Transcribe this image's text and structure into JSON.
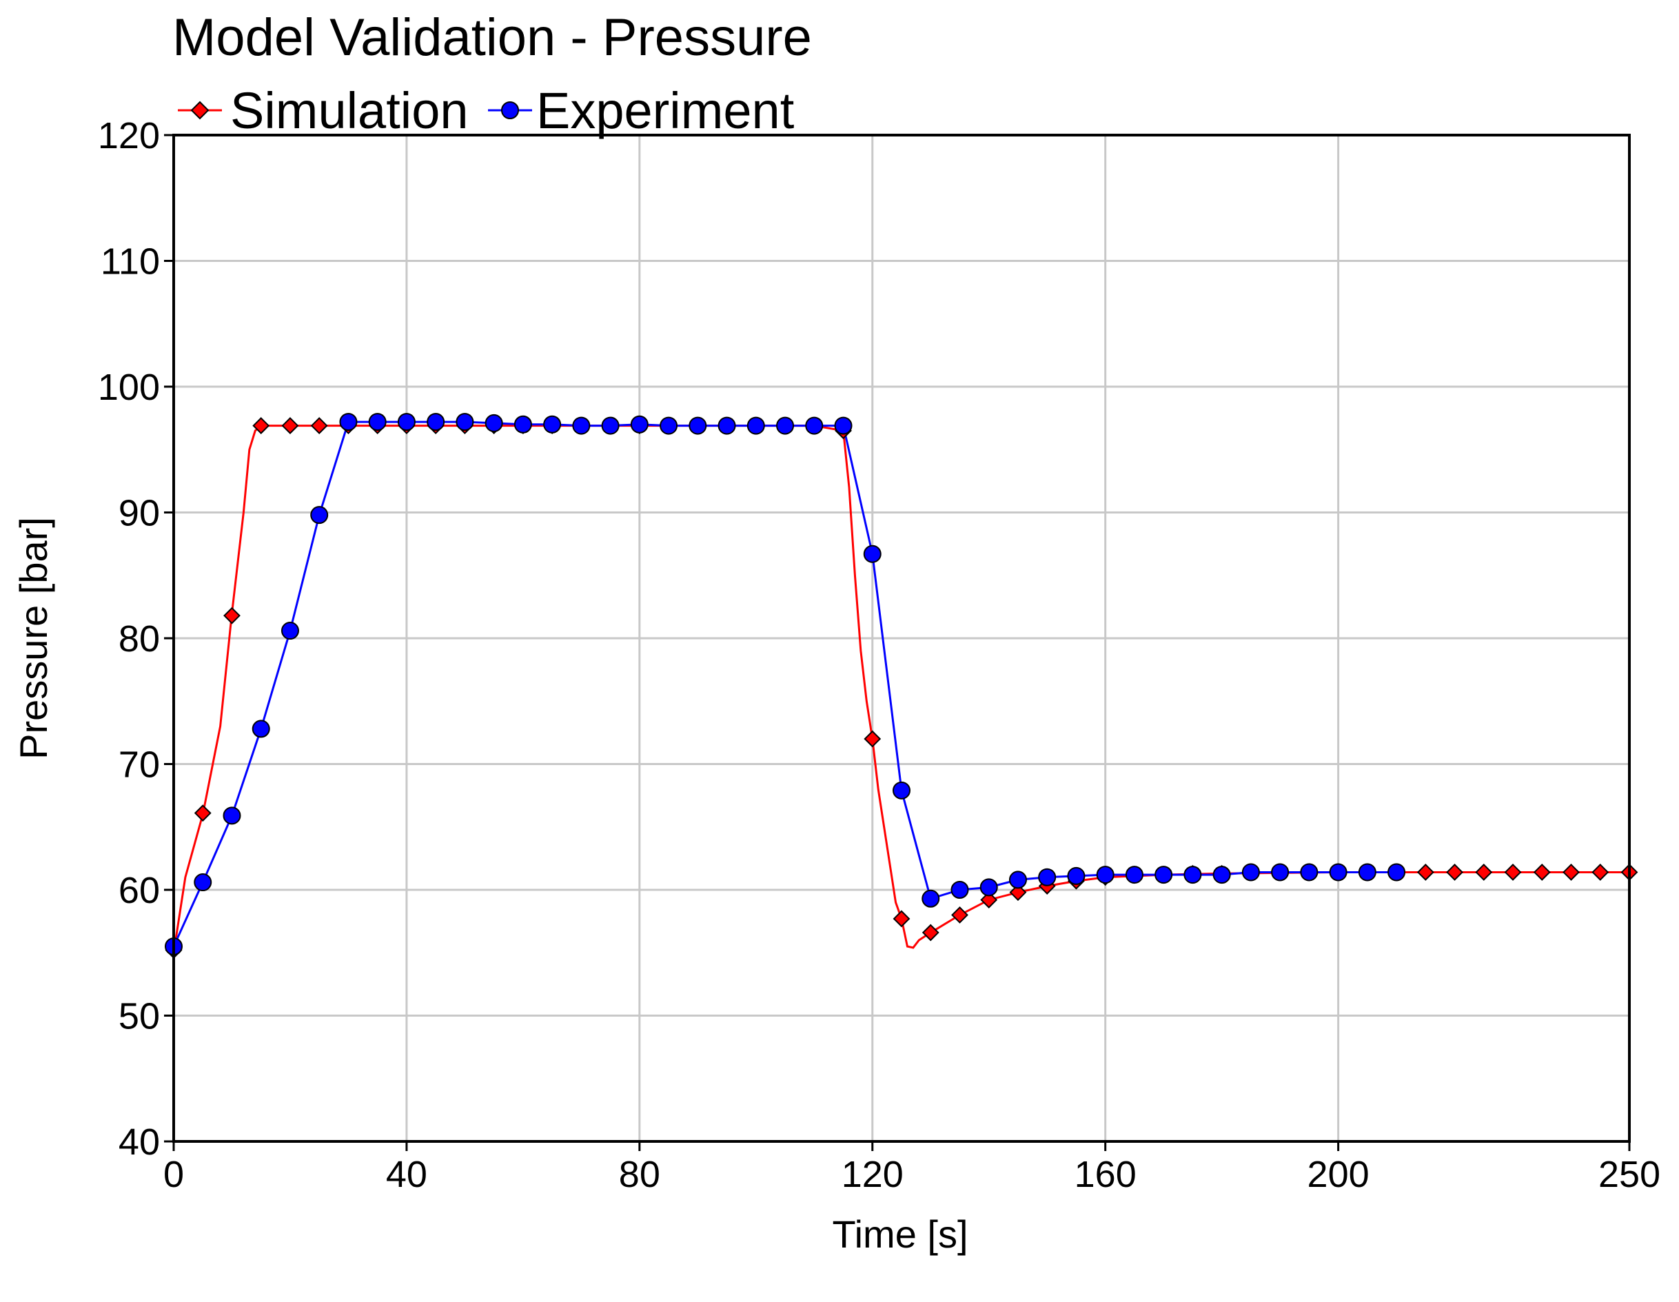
{
  "chart_data": {
    "type": "line",
    "title": "Model Validation - Pressure",
    "xlabel": "Time [s]",
    "ylabel": "Pressure [bar]",
    "xlim": [
      0,
      250
    ],
    "ylim": [
      40,
      120
    ],
    "grid": true,
    "legend_position": "top-left",
    "x_ticks": [
      0,
      40,
      80,
      120,
      160,
      200,
      250
    ],
    "x_tick_labels": [
      "0",
      "40",
      "80",
      "120",
      "160",
      "200",
      "250"
    ],
    "y_ticks": [
      40,
      50,
      60,
      70,
      80,
      90,
      100,
      110,
      120
    ],
    "y_tick_labels": [
      "40",
      "50",
      "60",
      "70",
      "80",
      "90",
      "100",
      "110",
      "120"
    ],
    "series": [
      {
        "name": "Simulation",
        "color": "#ff0000",
        "marker": "diamond",
        "line_x": [
          0,
          2,
          5,
          8,
          10,
          12,
          13,
          14,
          15,
          30,
          60,
          110,
          115,
          116,
          117,
          118,
          119,
          120,
          121,
          122,
          123,
          124,
          125,
          126,
          127,
          128,
          130,
          135,
          140,
          145,
          150,
          155,
          160,
          170,
          180,
          200,
          250
        ],
        "line_y": [
          55,
          61,
          66,
          73,
          82,
          90,
          95,
          96.5,
          96.9,
          96.9,
          96.9,
          96.9,
          96.5,
          92,
          85,
          79,
          75,
          72,
          68,
          65,
          62,
          59,
          57.7,
          55.5,
          55.4,
          56,
          56.6,
          58,
          59.2,
          59.8,
          60.3,
          60.7,
          61,
          61.2,
          61.3,
          61.4,
          61.4
        ],
        "markers_x": [
          0,
          5,
          10,
          15,
          20,
          25,
          30,
          35,
          40,
          45,
          50,
          55,
          60,
          65,
          70,
          75,
          80,
          85,
          90,
          95,
          100,
          105,
          110,
          115,
          120,
          125,
          130,
          135,
          140,
          145,
          150,
          155,
          160,
          165,
          170,
          175,
          180,
          185,
          190,
          195,
          200,
          205,
          210,
          215,
          220,
          225,
          230,
          235,
          240,
          245,
          250
        ],
        "markers_y": [
          55.2,
          66.1,
          81.8,
          96.9,
          96.9,
          96.9,
          96.9,
          96.9,
          96.9,
          96.9,
          96.9,
          96.9,
          96.9,
          96.9,
          96.9,
          96.9,
          96.9,
          96.9,
          96.9,
          96.9,
          96.9,
          96.9,
          96.9,
          96.5,
          72,
          57.7,
          56.6,
          58,
          59.2,
          59.8,
          60.3,
          60.7,
          61,
          61.2,
          61.2,
          61.3,
          61.3,
          61.4,
          61.4,
          61.4,
          61.4,
          61.4,
          61.4,
          61.4,
          61.4,
          61.4,
          61.4,
          61.4,
          61.4,
          61.4,
          61.4
        ]
      },
      {
        "name": "Experiment",
        "color": "#0000ff",
        "marker": "circle",
        "x": [
          0,
          5,
          10,
          15,
          20,
          25,
          30,
          35,
          40,
          45,
          50,
          55,
          60,
          65,
          70,
          75,
          80,
          85,
          90,
          95,
          100,
          105,
          110,
          115,
          120,
          125,
          130,
          135,
          140,
          145,
          150,
          155,
          160,
          165,
          170,
          175,
          180,
          185,
          190,
          195,
          200,
          205,
          210
        ],
        "y": [
          55.5,
          60.6,
          65.9,
          72.8,
          80.6,
          89.8,
          97.2,
          97.2,
          97.2,
          97.2,
          97.2,
          97.1,
          97,
          97,
          96.9,
          96.9,
          97,
          96.9,
          96.9,
          96.9,
          96.9,
          96.9,
          96.9,
          96.9,
          86.7,
          67.9,
          59.3,
          60,
          60.2,
          60.8,
          61,
          61.1,
          61.2,
          61.2,
          61.2,
          61.2,
          61.2,
          61.4,
          61.4,
          61.4,
          61.4,
          61.4,
          61.4
        ]
      }
    ]
  }
}
